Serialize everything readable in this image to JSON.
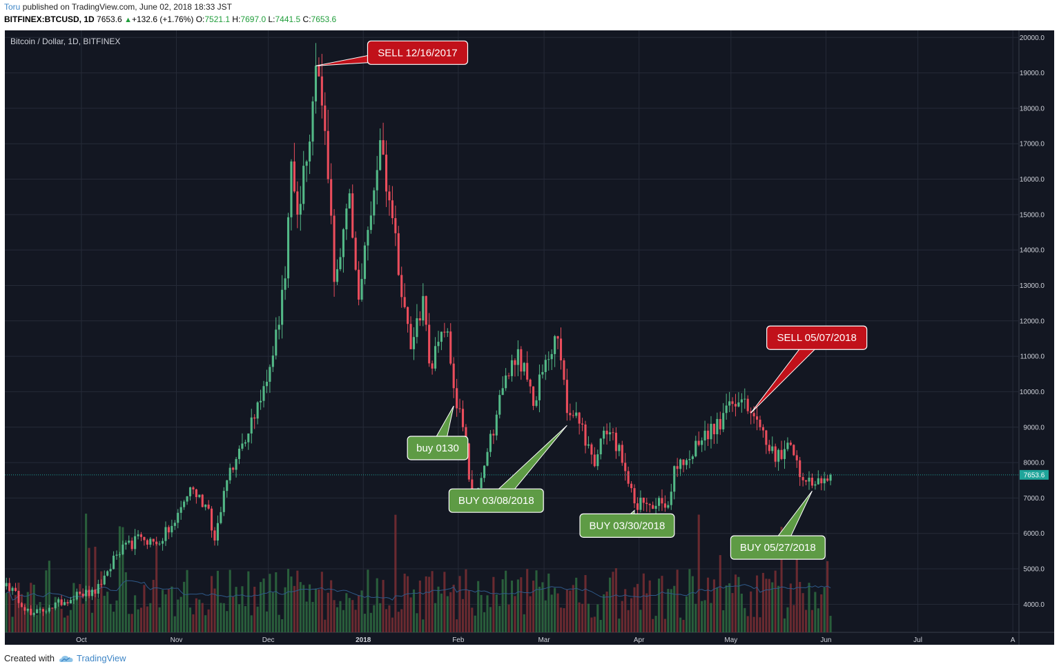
{
  "header": {
    "author": "Toru",
    "published_text": "published on TradingView.com, June 02, 2018 18:33 JST",
    "symbol": "BITFINEX:BTCUSD, 1D",
    "last": "7653.6",
    "change": "+132.6 (+1.76%)",
    "o_label": "O:",
    "o_value": "7521.1",
    "h_label": "H:",
    "h_value": "7697.0",
    "l_label": "L:",
    "l_value": "7441.5",
    "c_label": "C:",
    "c_value": "7653.6"
  },
  "footer": {
    "created_with": "Created with",
    "brand": "TradingView"
  },
  "colors": {
    "background": "#131722",
    "up": "#53b987",
    "down": "#eb4d5c",
    "sell": "#c1111a",
    "buy": "#5e9b45",
    "price_line": "#1fa59a"
  },
  "chart_data": {
    "type": "candlestick",
    "title": "Bitcoin / Dollar, 1D, BITFINEX",
    "ylim": [
      3500,
      20200
    ],
    "y_ticks": [
      "20000.0",
      "19000.0",
      "18000.0",
      "17000.0",
      "16000.0",
      "15000.0",
      "14000.0",
      "13000.0",
      "12000.0",
      "11000.0",
      "10000.0",
      "9000.0",
      "8000.0",
      "7000.0",
      "6000.0",
      "5000.0",
      "4000.0"
    ],
    "x_ticks": [
      {
        "label": "Oct",
        "date": "2017-10-01"
      },
      {
        "label": "Nov",
        "date": "2017-11-01"
      },
      {
        "label": "Dec",
        "date": "2017-12-01"
      },
      {
        "label": "2018",
        "date": "2018-01-01"
      },
      {
        "label": "Feb",
        "date": "2018-02-01"
      },
      {
        "label": "Mar",
        "date": "2018-03-01"
      },
      {
        "label": "Apr",
        "date": "2018-04-01"
      },
      {
        "label": "May",
        "date": "2018-05-01"
      },
      {
        "label": "Jun",
        "date": "2018-06-01"
      },
      {
        "label": "Jul",
        "date": "2018-07-01"
      },
      {
        "label": "A",
        "date": "2018-08-01"
      }
    ],
    "last_price": "7653.6",
    "series": [
      {
        "name": "close",
        "key_points": [
          {
            "date": "2017-09-06",
            "value": 4600
          },
          {
            "date": "2017-09-14",
            "value": 3700
          },
          {
            "date": "2017-09-20",
            "value": 3900
          },
          {
            "date": "2017-09-30",
            "value": 4300
          },
          {
            "date": "2017-10-05",
            "value": 4300
          },
          {
            "date": "2017-10-12",
            "value": 5400
          },
          {
            "date": "2017-10-20",
            "value": 5900
          },
          {
            "date": "2017-10-25",
            "value": 5700
          },
          {
            "date": "2017-10-31",
            "value": 6300
          },
          {
            "date": "2017-11-05",
            "value": 7300
          },
          {
            "date": "2017-11-11",
            "value": 6700
          },
          {
            "date": "2017-11-13",
            "value": 5800
          },
          {
            "date": "2017-11-16",
            "value": 7200
          },
          {
            "date": "2017-11-20",
            "value": 8100
          },
          {
            "date": "2017-11-27",
            "value": 9700
          },
          {
            "date": "2017-12-01",
            "value": 10700
          },
          {
            "date": "2017-12-06",
            "value": 13200
          },
          {
            "date": "2017-12-08",
            "value": 16500
          },
          {
            "date": "2017-12-10",
            "value": 15000
          },
          {
            "date": "2017-12-13",
            "value": 16500
          },
          {
            "date": "2017-12-16",
            "value": 19200
          },
          {
            "date": "2017-12-17",
            "value": 18900
          },
          {
            "date": "2017-12-20",
            "value": 16000
          },
          {
            "date": "2017-12-22",
            "value": 13100
          },
          {
            "date": "2017-12-24",
            "value": 13800
          },
          {
            "date": "2017-12-27",
            "value": 15600
          },
          {
            "date": "2017-12-30",
            "value": 12600
          },
          {
            "date": "2018-01-06",
            "value": 17100
          },
          {
            "date": "2018-01-10",
            "value": 14900
          },
          {
            "date": "2018-01-16",
            "value": 11200
          },
          {
            "date": "2018-01-20",
            "value": 12700
          },
          {
            "date": "2018-01-22",
            "value": 10800
          },
          {
            "date": "2018-01-28",
            "value": 11700
          },
          {
            "date": "2018-01-30",
            "value": 10100
          },
          {
            "date": "2018-02-02",
            "value": 9000
          },
          {
            "date": "2018-02-05",
            "value": 6900
          },
          {
            "date": "2018-02-10",
            "value": 8300
          },
          {
            "date": "2018-02-15",
            "value": 10100
          },
          {
            "date": "2018-02-20",
            "value": 11200
          },
          {
            "date": "2018-02-25",
            "value": 9600
          },
          {
            "date": "2018-03-01",
            "value": 10900
          },
          {
            "date": "2018-03-05",
            "value": 11500
          },
          {
            "date": "2018-03-08",
            "value": 9400
          },
          {
            "date": "2018-03-12",
            "value": 9100
          },
          {
            "date": "2018-03-17",
            "value": 7900
          },
          {
            "date": "2018-03-20",
            "value": 8900
          },
          {
            "date": "2018-03-25",
            "value": 8500
          },
          {
            "date": "2018-03-30",
            "value": 6850
          },
          {
            "date": "2018-04-04",
            "value": 6800
          },
          {
            "date": "2018-04-07",
            "value": 7000
          },
          {
            "date": "2018-04-10",
            "value": 6800
          },
          {
            "date": "2018-04-12",
            "value": 7900
          },
          {
            "date": "2018-04-17",
            "value": 8100
          },
          {
            "date": "2018-04-22",
            "value": 8900
          },
          {
            "date": "2018-04-25",
            "value": 8800
          },
          {
            "date": "2018-04-28",
            "value": 9400
          },
          {
            "date": "2018-05-05",
            "value": 9800
          },
          {
            "date": "2018-05-07",
            "value": 9400
          },
          {
            "date": "2018-05-10",
            "value": 9000
          },
          {
            "date": "2018-05-12",
            "value": 8500
          },
          {
            "date": "2018-05-17",
            "value": 8100
          },
          {
            "date": "2018-05-20",
            "value": 8500
          },
          {
            "date": "2018-05-24",
            "value": 7500
          },
          {
            "date": "2018-05-27",
            "value": 7350
          },
          {
            "date": "2018-05-31",
            "value": 7550
          },
          {
            "date": "2018-06-02",
            "value": 7653.6
          }
        ]
      }
    ],
    "annotations": [
      {
        "label": "SELL 12/16/2017",
        "type": "sell",
        "date": "2017-12-16",
        "value": 19200
      },
      {
        "label": "buy 0130",
        "type": "buy",
        "date": "2018-01-30",
        "value": 9600
      },
      {
        "label": "BUY 03/08/2018",
        "type": "buy",
        "date": "2018-03-08",
        "value": 9050
      },
      {
        "label": "BUY 03/30/2018",
        "type": "buy",
        "date": "2018-03-30",
        "value": 6650
      },
      {
        "label": "SELL 05/07/2018",
        "type": "sell",
        "date": "2018-05-07",
        "value": 9400
      },
      {
        "label": "BUY 05/27/2018",
        "type": "buy",
        "date": "2018-05-27",
        "value": 7200
      }
    ]
  }
}
